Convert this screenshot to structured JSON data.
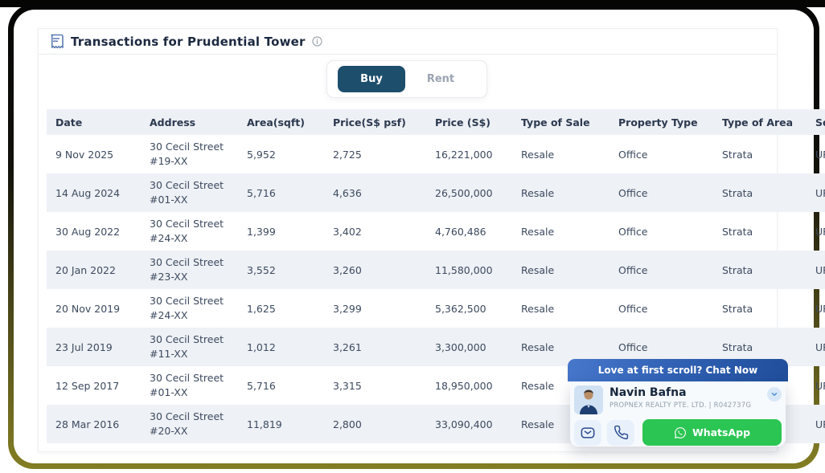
{
  "header": {
    "title": "Transactions for Prudential Tower"
  },
  "toggle": {
    "buy_label": "Buy",
    "rent_label": "Rent",
    "selected": "Buy"
  },
  "table": {
    "columns": [
      "Date",
      "Address",
      "Area(sqft)",
      "Price(S$ psf)",
      "Price (S$)",
      "Type of Sale",
      "Property Type",
      "Type of Area",
      "Source"
    ],
    "rows": [
      [
        "9 Nov 2025",
        [
          "30 Cecil Street",
          "#19-XX"
        ],
        "5,952",
        "2,725",
        "16,221,000",
        "Resale",
        "Office",
        "Strata",
        "URA"
      ],
      [
        "14 Aug 2024",
        [
          "30 Cecil Street",
          "#01-XX"
        ],
        "5,716",
        "4,636",
        "26,500,000",
        "Resale",
        "Office",
        "Strata",
        "URA"
      ],
      [
        "30 Aug 2022",
        [
          "30 Cecil Street",
          "#24-XX"
        ],
        "1,399",
        "3,402",
        "4,760,486",
        "Resale",
        "Office",
        "Strata",
        "URA"
      ],
      [
        "20 Jan 2022",
        [
          "30 Cecil Street",
          "#23-XX"
        ],
        "3,552",
        "3,260",
        "11,580,000",
        "Resale",
        "Office",
        "Strata",
        "URA"
      ],
      [
        "20 Nov 2019",
        [
          "30 Cecil Street",
          "#24-XX"
        ],
        "1,625",
        "3,299",
        "5,362,500",
        "Resale",
        "Office",
        "Strata",
        "URA"
      ],
      [
        "23 Jul 2019",
        [
          "30 Cecil Street",
          "#11-XX"
        ],
        "1,012",
        "3,261",
        "3,300,000",
        "Resale",
        "Office",
        "Strata",
        "URA"
      ],
      [
        "12 Sep 2017",
        [
          "30 Cecil Street",
          "#01-XX"
        ],
        "5,716",
        "3,315",
        "18,950,000",
        "Resale",
        "Office",
        "Strata",
        "URA"
      ],
      [
        "28 Mar 2016",
        [
          "30 Cecil Street",
          "#20-XX"
        ],
        "11,819",
        "2,800",
        "33,090,400",
        "Resale",
        "Office",
        "Strata",
        "URA"
      ]
    ]
  },
  "chat": {
    "banner": "Love at first scroll? Chat Now",
    "agent_name": "Navin Bafna",
    "agent_agency": "PROPNEX REALTY PTE. LTD. | R042737G",
    "whatsapp_label": "WhatsApp"
  },
  "colors": {
    "buy_button": "#1d4e6c",
    "chat_banner_gradient_start": "#4677cb",
    "chat_banner_gradient_end": "#204e9b",
    "whatsapp_green": "#2bc553",
    "row_alt": "#eef1f5",
    "frame_olive": "#837e23",
    "frame_black": "#050505",
    "icon_navy": "#2c4a8f"
  }
}
